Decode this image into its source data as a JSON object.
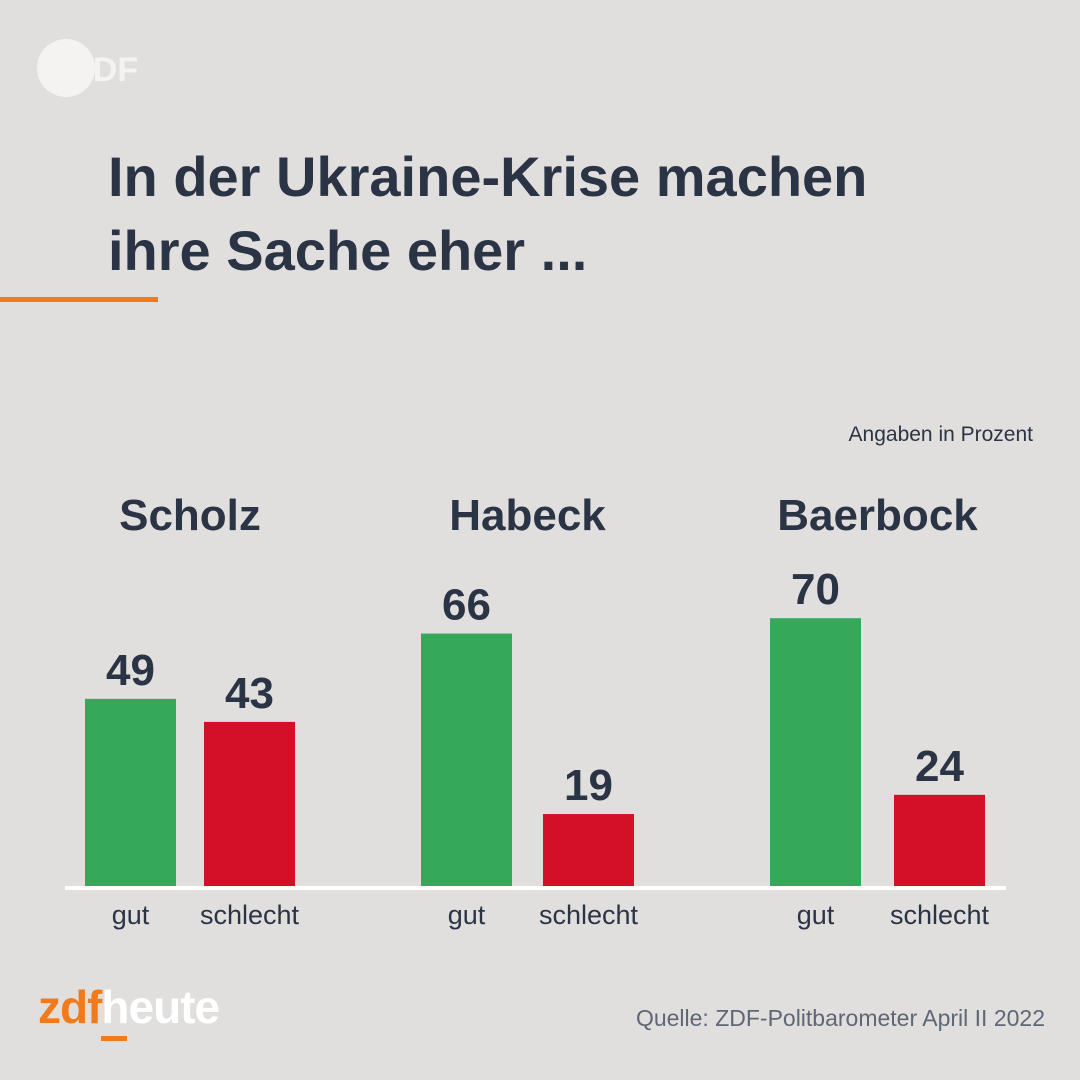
{
  "header": {
    "logo_text": "ZDF",
    "title_line1": "In der Ukraine-Krise machen",
    "title_line2": "ihre Sache eher ..."
  },
  "unit_note": "Angaben in Prozent",
  "colors": {
    "background": "#e1dfde",
    "gut": "#35a85a",
    "schlecht": "#d40f28",
    "text": "#2b3445",
    "accent": "#f07a1c"
  },
  "chart_data": {
    "type": "bar",
    "title": "In der Ukraine-Krise machen ihre Sache eher ...",
    "unit": "Angaben in Prozent",
    "categories": [
      "Scholz",
      "Habeck",
      "Baerbock"
    ],
    "series": [
      {
        "name": "gut",
        "values": [
          49,
          66,
          70
        ]
      },
      {
        "name": "schlecht",
        "values": [
          43,
          19,
          24
        ]
      }
    ],
    "ylim": [
      0,
      100
    ],
    "grid": false,
    "legend": "none"
  },
  "footer": {
    "brand_zdf": "zdf",
    "brand_heute": "heute",
    "source": "Quelle: ZDF-Politbarometer April II 2022"
  }
}
